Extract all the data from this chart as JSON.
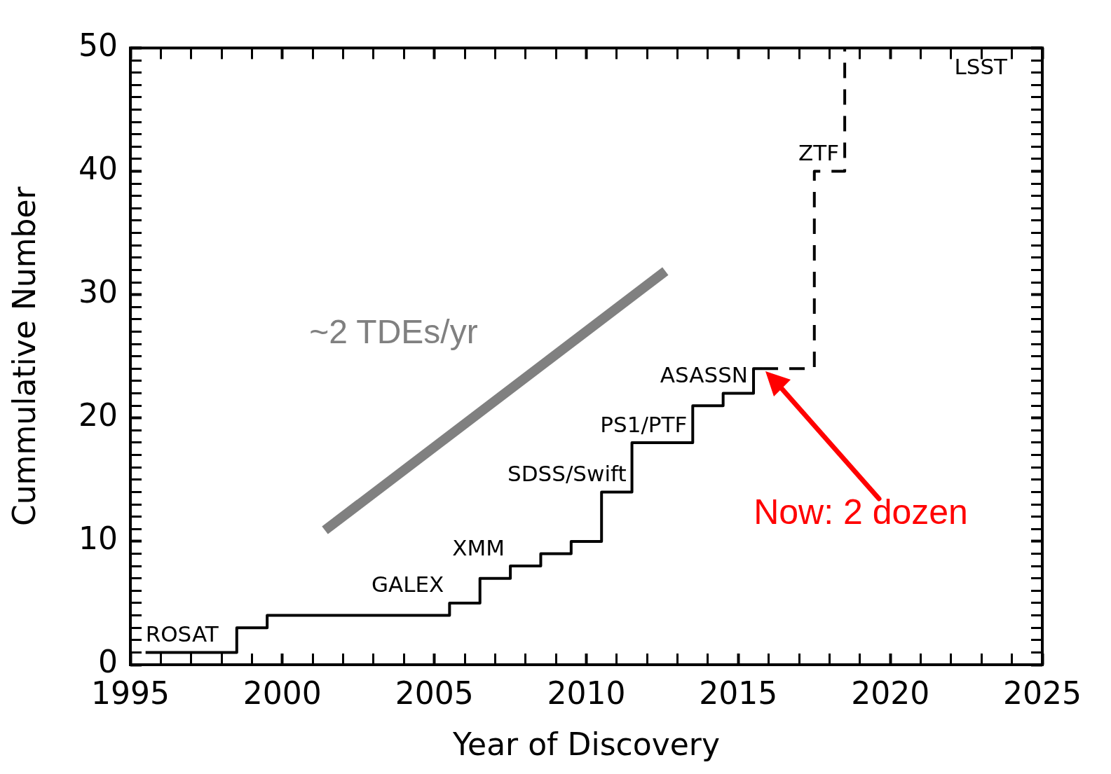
{
  "chart_data": {
    "type": "step",
    "xlabel": "Year of Discovery",
    "ylabel": "Cummulative Number",
    "xlim": [
      1995,
      2025
    ],
    "xticks": [
      1995,
      {
        "value": 1996,
        "label": null
      },
      {
        "value": 1997,
        "label": null
      },
      {
        "value": 1998,
        "label": null
      },
      {
        "value": 1999,
        "label": null
      },
      2000,
      {
        "value": 2001,
        "label": null
      },
      {
        "value": 2002,
        "label": null
      },
      {
        "value": 2003,
        "label": null
      },
      {
        "value": 2004,
        "label": null
      },
      2005,
      {
        "value": 2006,
        "label": null
      },
      {
        "value": 2007,
        "label": null
      },
      {
        "value": 2008,
        "label": null
      },
      {
        "value": 2009,
        "label": null
      },
      2010,
      {
        "value": 2011,
        "label": null
      },
      {
        "value": 2012,
        "label": null
      },
      {
        "value": 2013,
        "label": null
      },
      {
        "value": 2014,
        "label": null
      },
      2015,
      {
        "value": 2016,
        "label": null
      },
      {
        "value": 2017,
        "label": null
      },
      {
        "value": 2018,
        "label": null
      },
      {
        "value": 2019,
        "label": null
      },
      2020,
      {
        "value": 2021,
        "label": null
      },
      {
        "value": 2022,
        "label": null
      },
      {
        "value": 2023,
        "label": null
      },
      {
        "value": 2024,
        "label": null
      },
      2025
    ],
    "ylim": [
      0,
      50
    ],
    "yticks": [
      0,
      {
        "value": 1,
        "label": null
      },
      {
        "value": 2,
        "label": null
      },
      {
        "value": 3,
        "label": null
      },
      {
        "value": 4,
        "label": null
      },
      {
        "value": 5,
        "label": null
      },
      {
        "value": 6,
        "label": null
      },
      {
        "value": 7,
        "label": null
      },
      {
        "value": 8,
        "label": null
      },
      {
        "value": 9,
        "label": null
      },
      10,
      {
        "value": 11,
        "label": null
      },
      {
        "value": 12,
        "label": null
      },
      {
        "value": 13,
        "label": null
      },
      {
        "value": 14,
        "label": null
      },
      {
        "value": 15,
        "label": null
      },
      {
        "value": 16,
        "label": null
      },
      {
        "value": 17,
        "label": null
      },
      {
        "value": 18,
        "label": null
      },
      {
        "value": 19,
        "label": null
      },
      20,
      {
        "value": 21,
        "label": null
      },
      {
        "value": 22,
        "label": null
      },
      {
        "value": 23,
        "label": null
      },
      {
        "value": 24,
        "label": null
      },
      {
        "value": 25,
        "label": null
      },
      {
        "value": 26,
        "label": null
      },
      {
        "value": 27,
        "label": null
      },
      {
        "value": 28,
        "label": null
      },
      {
        "value": 29,
        "label": null
      },
      30,
      {
        "value": 31,
        "label": null
      },
      {
        "value": 32,
        "label": null
      },
      {
        "value": 33,
        "label": null
      },
      {
        "value": 34,
        "label": null
      },
      {
        "value": 35,
        "label": null
      },
      {
        "value": 36,
        "label": null
      },
      {
        "value": 37,
        "label": null
      },
      {
        "value": 38,
        "label": null
      },
      {
        "value": 39,
        "label": null
      },
      40,
      {
        "value": 41,
        "label": null
      },
      {
        "value": 42,
        "label": null
      },
      {
        "value": 43,
        "label": null
      },
      {
        "value": 44,
        "label": null
      },
      {
        "value": 45,
        "label": null
      },
      {
        "value": 46,
        "label": null
      },
      {
        "value": 47,
        "label": null
      },
      {
        "value": 48,
        "label": null
      },
      {
        "value": 49,
        "label": null
      },
      50
    ],
    "marker": "none",
    "legend": false,
    "series": [
      {
        "color": "#000000",
        "line_style": "solid",
        "x": [
          1995.5,
          1998.5,
          1999.5,
          2005.5,
          2006.5,
          2007.5,
          2008.5,
          2009.5,
          2010.5,
          2011.5,
          2013.5,
          2014.5,
          2015.5,
          2015.8
        ],
        "values": [
          1,
          3,
          4,
          5,
          7,
          8,
          9,
          10,
          14,
          18,
          21,
          22,
          24,
          24
        ]
      },
      {
        "color": "#000000",
        "line_style": "dashed",
        "x": [
          2015.8,
          2017.5,
          2018.5
        ],
        "values": [
          24,
          40,
          50
        ]
      },
      {
        "type": "line",
        "name": "~2 TDEs/yr",
        "color": "#808080",
        "line_style": "solid",
        "x": [
          2001.4,
          2012.6
        ],
        "values": [
          10.9,
          31.9
        ]
      }
    ],
    "annotations": [
      {
        "text": "ROSAT",
        "x": 1995.5,
        "y": 1
      },
      {
        "text": "GALEX",
        "x": 2005.5,
        "y": 5
      },
      {
        "text": "XMM",
        "x": 2007.5,
        "y": 8
      },
      {
        "text": "SDSS/Swift",
        "x": 2011.5,
        "y": 14
      },
      {
        "text": "PS1/PTF",
        "x": 2013.5,
        "y": 18
      },
      {
        "text": "ASASSN",
        "x": 2015.5,
        "y": 22
      },
      {
        "text": "ZTF",
        "x": 2018.5,
        "y": 40
      },
      "LSST",
      "Now: 2 dozen"
    ]
  }
}
